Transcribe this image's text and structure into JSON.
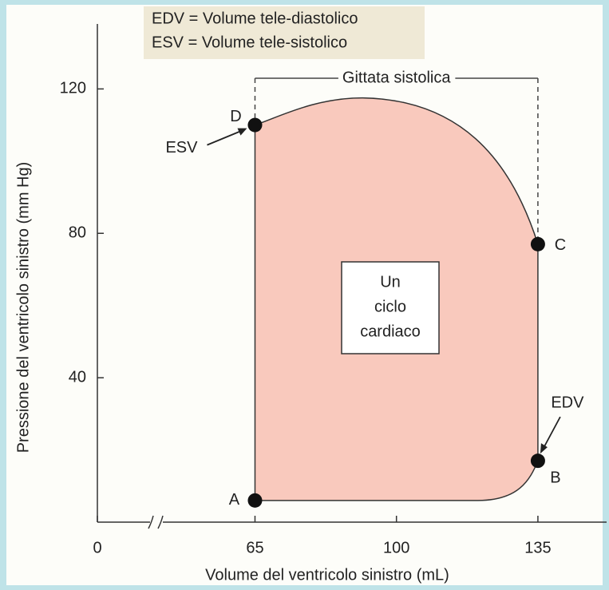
{
  "chart_data": {
    "type": "pv-loop",
    "legend_lines": [
      "EDV = Volume tele-diastolico",
      "ESV = Volume tele-sistolico"
    ],
    "xlabel": "Volume del ventricolo sinistro (mL)",
    "ylabel": "Pressione del ventricolo sinistro (mm Hg)",
    "annotation": "Gittata sistolica",
    "box_text": [
      "Un",
      "ciclo",
      "cardiaco"
    ],
    "callouts": [
      "ESV",
      "EDV"
    ],
    "point_labels": [
      "A",
      "B",
      "C",
      "D"
    ],
    "x": [
      65,
      135,
      135,
      65
    ],
    "values": [
      6,
      17,
      77,
      110
    ],
    "color": "#f9c9bd",
    "xlim": [
      26,
      152
    ],
    "xticks": [
      0,
      65,
      100,
      135
    ],
    "axis_break": true,
    "ylim": [
      0,
      138
    ],
    "yticks": [
      40,
      80,
      120
    ]
  }
}
